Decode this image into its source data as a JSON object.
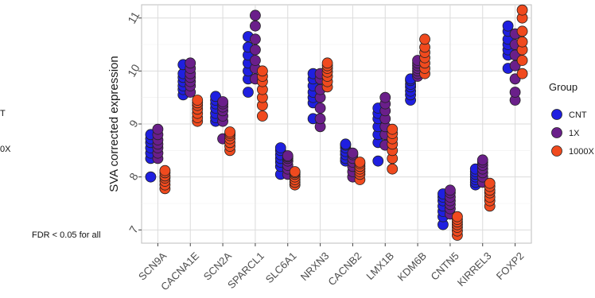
{
  "side_notes": {
    "cnt_fragment": "T",
    "x1000_fragment": "0X",
    "fdr_note": "FDR < 0.05 for all"
  },
  "chart_data": {
    "type": "scatter",
    "title": "",
    "xlabel": "",
    "ylabel": "SVA corrected expression",
    "ylim": [
      6.75,
      11.25
    ],
    "yticks": [
      7,
      8,
      9,
      10,
      11
    ],
    "grid": true,
    "legend": {
      "title": "Group",
      "placement": "right"
    },
    "categories": [
      "SCN9A",
      "CACNA1E",
      "SCN2A",
      "SPARCL1",
      "SLC6A1",
      "NRXN3",
      "CACNB2",
      "LMX1B",
      "KDM6B",
      "CNTN5",
      "KIRREL3",
      "FOXP2"
    ],
    "series": [
      {
        "name": "CNT",
        "color": "#1f1fe0",
        "offset": -0.22,
        "values": [
          [
            8.0,
            8.35,
            8.45,
            8.55,
            8.65,
            8.72,
            8.8
          ],
          [
            9.55,
            9.65,
            9.72,
            9.8,
            9.88,
            9.95,
            10.12
          ],
          [
            9.05,
            9.12,
            9.2,
            9.3,
            9.38,
            9.45,
            9.52
          ],
          [
            9.6,
            9.85,
            10.0,
            10.15,
            10.3,
            10.45,
            10.65
          ],
          [
            8.05,
            8.2,
            8.28,
            8.35,
            8.42,
            8.5,
            8.55
          ],
          [
            9.1,
            9.4,
            9.5,
            9.6,
            9.72,
            9.85,
            9.95
          ],
          [
            8.3,
            8.35,
            8.42,
            8.48,
            8.55,
            8.6,
            8.62
          ],
          [
            8.3,
            8.65,
            8.8,
            8.95,
            9.1,
            9.2,
            9.3
          ],
          [
            9.45,
            9.55,
            9.62,
            9.7,
            9.75,
            9.82,
            9.85
          ],
          [
            7.1,
            7.25,
            7.35,
            7.45,
            7.55,
            7.62,
            7.68
          ],
          [
            7.85,
            7.9,
            7.95,
            8.0,
            8.05,
            8.1,
            8.15
          ],
          [
            10.05,
            10.3,
            10.4,
            10.5,
            10.6,
            10.75,
            10.85
          ]
        ]
      },
      {
        "name": "1X",
        "color": "#6a1f8a",
        "offset": 0.0,
        "values": [
          [
            8.35,
            8.45,
            8.55,
            8.62,
            8.7,
            8.8,
            8.9
          ],
          [
            9.6,
            9.72,
            9.8,
            9.88,
            9.95,
            10.05,
            10.15
          ],
          [
            8.72,
            9.05,
            9.15,
            9.25,
            9.32,
            9.38,
            9.42
          ],
          [
            9.85,
            10.05,
            10.2,
            10.4,
            10.6,
            10.85,
            11.05
          ],
          [
            8.05,
            8.15,
            8.22,
            8.3,
            8.35,
            8.38,
            8.4
          ],
          [
            8.95,
            9.1,
            9.3,
            9.5,
            9.65,
            9.85,
            9.95
          ],
          [
            8.0,
            8.1,
            8.2,
            8.28,
            8.35,
            8.42,
            8.45
          ],
          [
            8.6,
            8.8,
            8.95,
            9.1,
            9.25,
            9.38,
            9.5
          ],
          [
            9.9,
            9.95,
            10.0,
            10.05,
            10.1,
            10.15,
            10.2
          ],
          [
            7.3,
            7.4,
            7.48,
            7.55,
            7.62,
            7.7,
            7.75
          ],
          [
            7.9,
            8.0,
            8.08,
            8.15,
            8.22,
            8.28,
            8.32
          ],
          [
            9.45,
            9.6,
            9.85,
            10.1,
            10.3,
            10.5,
            10.7
          ]
        ]
      },
      {
        "name": "1000X",
        "color": "#f04a1e",
        "offset": 0.22,
        "values": [
          [
            7.78,
            7.85,
            7.92,
            7.98,
            8.02,
            8.08,
            8.12
          ],
          [
            9.05,
            9.12,
            9.2,
            9.28,
            9.35,
            9.4,
            9.45
          ],
          [
            8.5,
            8.58,
            8.65,
            8.72,
            8.78,
            8.82,
            8.85
          ],
          [
            9.15,
            9.35,
            9.5,
            9.65,
            9.8,
            9.9,
            10.0
          ],
          [
            7.85,
            7.9,
            7.95,
            8.0,
            8.05,
            8.08,
            8.1
          ],
          [
            9.7,
            9.8,
            9.9,
            9.98,
            10.05,
            10.1,
            10.15
          ],
          [
            7.95,
            8.05,
            8.1,
            8.15,
            8.2,
            8.25,
            8.28
          ],
          [
            8.15,
            8.35,
            8.5,
            8.62,
            8.72,
            8.82,
            8.9
          ],
          [
            9.95,
            10.05,
            10.15,
            10.25,
            10.35,
            10.45,
            10.6
          ],
          [
            6.9,
            6.98,
            7.05,
            7.1,
            7.15,
            7.2,
            7.25
          ],
          [
            7.45,
            7.55,
            7.62,
            7.7,
            7.75,
            7.82,
            7.88
          ],
          [
            9.95,
            10.2,
            10.4,
            10.55,
            10.75,
            11.0,
            11.15
          ]
        ]
      }
    ]
  }
}
